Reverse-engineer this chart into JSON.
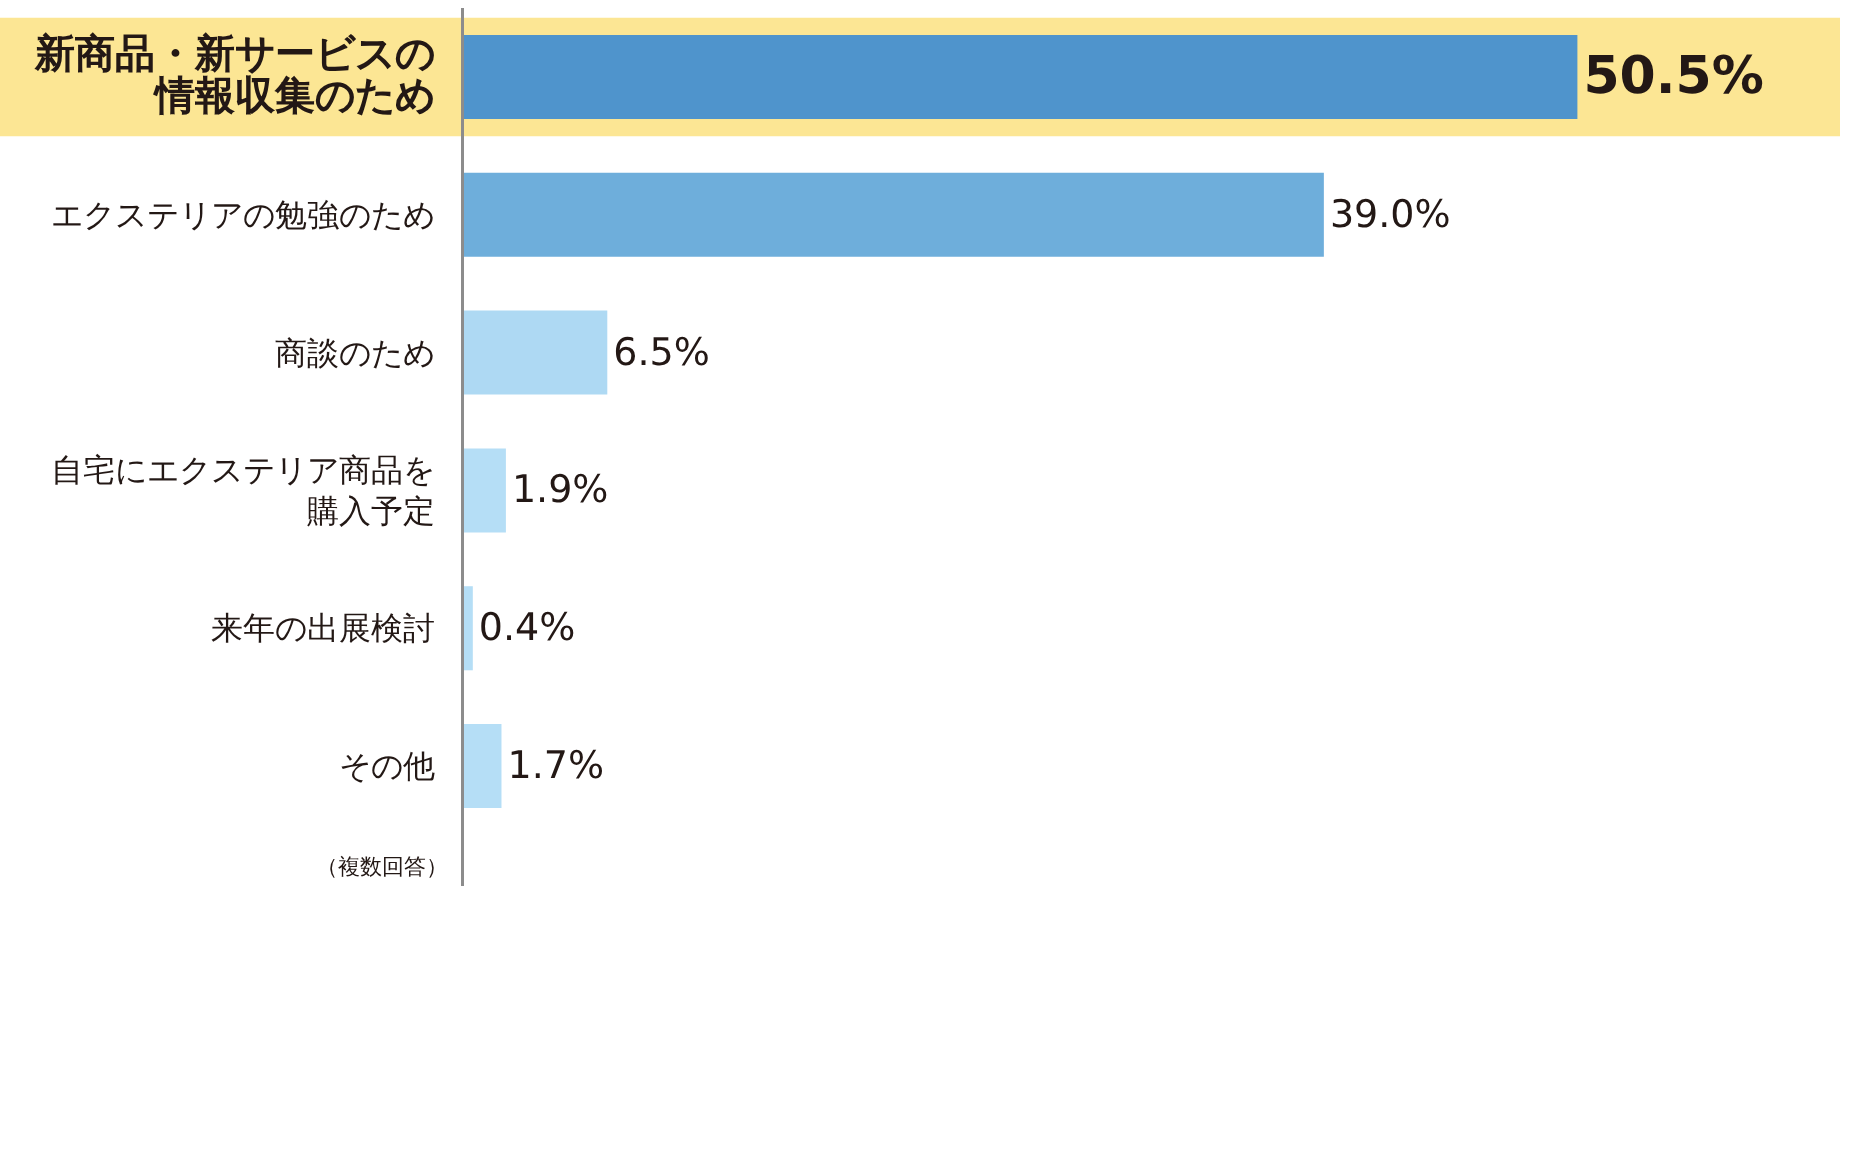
{
  "chart_data": {
    "type": "bar",
    "orientation": "horizontal",
    "categories": [
      "新商品・新サービスの情報収集のため",
      "エクステリアの勉強のため",
      "商談のため",
      "自宅にエクステリア商品を購入予定",
      "来年の出展検討",
      "その他"
    ],
    "values": [
      50.5,
      39.0,
      6.5,
      1.9,
      0.4,
      1.7
    ],
    "value_labels": [
      "50.5%",
      "39.0%",
      "6.5%",
      "1.9%",
      "0.4%",
      "1.7%"
    ],
    "colors": [
      "#4f94cc",
      "#6eaedb",
      "#aed9f3",
      "#b5def6",
      "#b5def6",
      "#b5def6"
    ],
    "tick_labels": "y",
    "bands": [
      {
        "axis": "y",
        "from": "新商品・新サービスの情報収集のため",
        "to": "新商品・新サービスの情報収集のため",
        "color": "#fce694"
      }
    ],
    "annotations": [
      "（複数回答）"
    ]
  }
}
